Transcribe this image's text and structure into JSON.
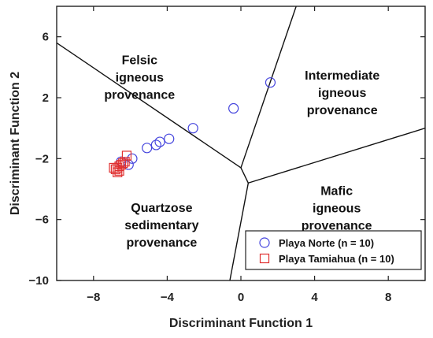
{
  "chart_data": {
    "type": "scatter",
    "xlabel": "Discriminant Function 1",
    "ylabel": "Discriminant Function 2",
    "xlim": [
      -10,
      10
    ],
    "ylim": [
      -10,
      8
    ],
    "xticks": [
      -8,
      -4,
      0,
      4,
      8
    ],
    "yticks": [
      6,
      2,
      -2,
      -6,
      -10
    ],
    "xtick_labels": [
      "−8",
      "−4",
      "0",
      "4",
      "8"
    ],
    "ytick_labels": [
      "6",
      "2",
      "−2",
      "−6",
      "−10"
    ],
    "grid": false,
    "legend_position": "bottom-right",
    "boundaries": [
      [
        [
          -10,
          5.6
        ],
        [
          0,
          -2.6
        ]
      ],
      [
        [
          0,
          -2.6
        ],
        [
          3,
          8
        ]
      ],
      [
        [
          0,
          -2.6
        ],
        [
          0.4,
          -3.6
        ]
      ],
      [
        [
          0.4,
          -3.6
        ],
        [
          10,
          0
        ]
      ],
      [
        [
          0.4,
          -3.6
        ],
        [
          -0.6,
          -10
        ]
      ]
    ],
    "regions": [
      {
        "lines": [
          "Felsic",
          "igneous",
          "provenance"
        ],
        "x": -5.5,
        "y": 4.2
      },
      {
        "lines": [
          "Intermediate",
          "igneous",
          "provenance"
        ],
        "x": 5.5,
        "y": 3.2
      },
      {
        "lines": [
          "Mafic",
          "igneous",
          "provenance"
        ],
        "x": 5.2,
        "y": -4.4
      },
      {
        "lines": [
          "Quartzose",
          "sedimentary",
          "provenance"
        ],
        "x": -4.3,
        "y": -5.5
      }
    ],
    "series": [
      {
        "name": "Playa Norte (n = 10)",
        "marker": "circle",
        "color": "#4444dd",
        "points": [
          [
            1.6,
            3.0
          ],
          [
            -0.4,
            1.3
          ],
          [
            -2.6,
            0.0
          ],
          [
            -3.9,
            -0.7
          ],
          [
            -4.4,
            -0.9
          ],
          [
            -4.6,
            -1.1
          ],
          [
            -5.1,
            -1.3
          ],
          [
            -5.9,
            -2.0
          ],
          [
            -6.1,
            -2.4
          ],
          [
            -6.5,
            -2.2
          ]
        ]
      },
      {
        "name": "Playa Tamiahua (n = 10)",
        "marker": "square",
        "color": "#e03030",
        "points": [
          [
            -6.2,
            -1.8
          ],
          [
            -6.3,
            -2.2
          ],
          [
            -6.4,
            -2.3
          ],
          [
            -6.5,
            -2.4
          ],
          [
            -6.6,
            -2.5
          ],
          [
            -6.7,
            -2.6
          ],
          [
            -6.8,
            -2.7
          ],
          [
            -6.6,
            -2.8
          ],
          [
            -6.7,
            -2.9
          ],
          [
            -6.9,
            -2.6
          ]
        ]
      }
    ]
  }
}
